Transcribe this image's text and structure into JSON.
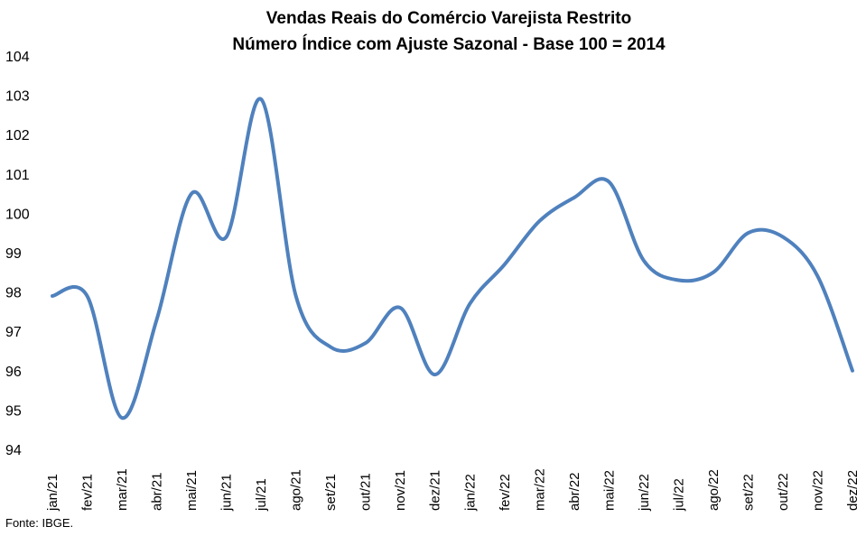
{
  "chart_data": {
    "type": "line",
    "title": [
      "Vendas Reais do Comércio Varejista Restrito",
      "Número Índice com Ajuste Sazonal - Base 100 = 2014"
    ],
    "xlabel": "",
    "ylabel": "",
    "ylim": [
      94,
      104
    ],
    "yticks": [
      94,
      95,
      96,
      97,
      98,
      99,
      100,
      101,
      102,
      103,
      104
    ],
    "grid": false,
    "legend": "none",
    "categories": [
      "jan/21",
      "fev/21",
      "mar/21",
      "abr/21",
      "mai/21",
      "jun/21",
      "jul/21",
      "ago/21",
      "set/21",
      "out/21",
      "nov/21",
      "dez/21",
      "jan/22",
      "fev/22",
      "mar/22",
      "abr/22",
      "mai/22",
      "jun/22",
      "jul/22",
      "ago/22",
      "set/22",
      "out/22",
      "nov/22",
      "dez/22"
    ],
    "series": [
      {
        "color": "#4F81BD",
        "values": [
          97.9,
          97.9,
          94.8,
          97.3,
          100.5,
          99.4,
          102.9,
          97.9,
          96.6,
          96.7,
          97.6,
          95.9,
          97.7,
          98.7,
          99.8,
          100.4,
          100.8,
          98.8,
          98.3,
          98.5,
          99.5,
          99.4,
          98.4,
          96.0
        ]
      }
    ]
  },
  "source": "Fonte: IBGE."
}
